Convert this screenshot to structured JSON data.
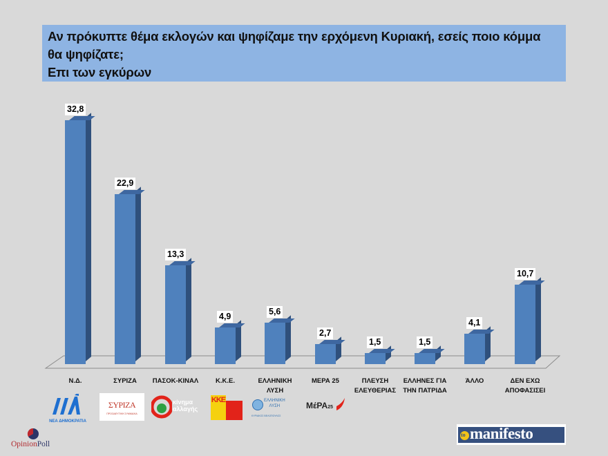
{
  "header": {
    "title_line1": "Αν πρόκυπτε θέμα εκλογών και ψηφίζαμε την ερχόμενη Κυριακή, εσείς ποιο κόμμα",
    "title_line2": "θα ψηφίζατε;",
    "title_line3": "Επι των εγκύρων"
  },
  "colors": {
    "background": "#d9d9d9",
    "title_box": "#8eb4e3",
    "bar_front": "#4f81bd",
    "bar_side": "#2f507c",
    "bar_top": "#3e67a0"
  },
  "chart_data": {
    "type": "bar",
    "title": "Αν πρόκυπτε θέμα εκλογών και ψηφίζαμε την ερχόμενη Κυριακή, εσείς ποιο κόμμα θα ψηφίζατε; Επι των εγκύρων",
    "categories": [
      "Ν.Δ.",
      "ΣΥΡΙΖΑ",
      "ΠΑΣΟΚ-ΚΙΝΑΛ",
      "Κ.Κ.Ε.",
      "ΕΛΛΗΝΙΚΗ ΛΥΣΗ",
      "ΜΕΡΑ 25",
      "ΠΛΕΥΣΗ ΕΛΕΥΘΕΡΙΑΣ",
      "ΕΛΛΗΝΕΣ ΓΙΑ ΤΗΝ ΠΑΤΡΙΔΑ",
      "ΆΛΛΟ",
      "ΔΕΝ ΕΧΩ ΑΠΟΦΑΣΙΣΕΙ"
    ],
    "values": [
      32.8,
      22.9,
      13.3,
      4.9,
      5.6,
      2.7,
      1.5,
      1.5,
      4.1,
      10.7
    ],
    "value_labels": [
      "32,8",
      "22,9",
      "13,3",
      "4,9",
      "5,6",
      "2,7",
      "1,5",
      "1,5",
      "4,1",
      "10,7"
    ],
    "xlabel": "",
    "ylabel": "",
    "grid": false,
    "legend": "none",
    "style": "3d-column"
  },
  "categories_display": [
    {
      "line1": "Ν.Δ.",
      "line2": ""
    },
    {
      "line1": "ΣΥΡΙΖΑ",
      "line2": ""
    },
    {
      "line1": "ΠΑΣΟΚ-ΚΙΝΑΛ",
      "line2": ""
    },
    {
      "line1": "Κ.Κ.Ε.",
      "line2": ""
    },
    {
      "line1": "ΕΛΛΗΝΙΚΗ",
      "line2": "ΛΥΣΗ"
    },
    {
      "line1": "ΜΕΡΑ 25",
      "line2": ""
    },
    {
      "line1": "ΠΛΕΥΣΗ",
      "line2": "ΕΛΕΥΘΕΡΙΑΣ"
    },
    {
      "line1": "ΕΛΛΗΝΕΣ ΓΙΑ",
      "line2": "ΤΗΝ ΠΑΤΡΙΔΑ"
    },
    {
      "line1": "ΆΛΛΟ",
      "line2": ""
    },
    {
      "line1": "ΔΕΝ ΕΧΩ",
      "line2": "ΑΠΟΦΑΣΙΣΕΙ"
    }
  ],
  "party_logos": {
    "nd": {
      "mark": "ΝΔ",
      "text": "ΝΕΑ ΔΗΜΟΚΡΑΤΙΑ"
    },
    "syriza": {
      "mark": "ΣΥΡΙΖΑ",
      "text": "ΠΡΟΟΔΕΥΤΙΚΗ ΣΥΜΜΑΧΙΑ"
    },
    "kinal": {
      "text1": "κίνημα",
      "text2": "αλλαγής"
    },
    "kke": {
      "mark": "ΚΚΕ"
    },
    "elliniki_lysi": {
      "text1": "ΕΛΛΗΝΙΚΗ",
      "text2": "ΛΥΣΗ",
      "text3": "ΚΥΡΙΑΚΟΣ ΒΕΛΟΠΟΥΛΟΣ"
    },
    "mera25": {
      "text": "MέPA",
      "sub": "25"
    }
  },
  "footer": {
    "opinionpoll_part1": "Opinion",
    "opinionpoll_part2": "Poll",
    "manifesto_prefix": "to",
    "manifesto_name": "manifesto"
  }
}
